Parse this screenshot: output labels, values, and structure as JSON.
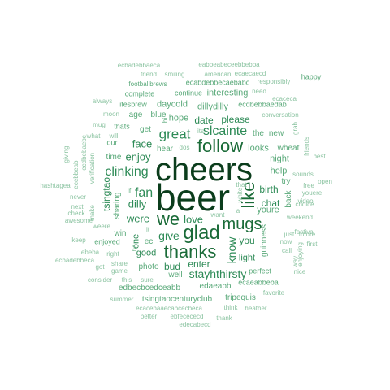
{
  "palette": [
    "#0b3d1c",
    "#1a6b38",
    "#2e8b57",
    "#59a979",
    "#8cc4a2"
  ],
  "words": [
    {
      "text": "beer",
      "tier": 0
    },
    {
      "text": "cheers",
      "tier": 0
    },
    {
      "text": "glad",
      "tier": 1
    },
    {
      "text": "thanks",
      "tier": 1
    },
    {
      "text": "follow",
      "tier": 1
    },
    {
      "text": "we",
      "tier": 1
    },
    {
      "text": "like",
      "tier": 1
    },
    {
      "text": "mugs",
      "tier": 1
    },
    {
      "text": "great",
      "tier": 2
    },
    {
      "text": "clinking",
      "tier": 2
    },
    {
      "text": "fan",
      "tier": 2
    },
    {
      "text": "slcainte",
      "tier": 2
    },
    {
      "text": "give",
      "tier": 2
    },
    {
      "text": "stayhthirsty",
      "tier": 2
    },
    {
      "text": "know",
      "tier": 2
    },
    {
      "text": "were",
      "tier": 2
    },
    {
      "text": "love",
      "tier": 2
    },
    {
      "text": "dilly",
      "tier": 2
    },
    {
      "text": "enjoy",
      "tier": 2
    },
    {
      "text": "face",
      "tier": 2
    },
    {
      "text": "please",
      "tier": 2
    },
    {
      "text": "date",
      "tier": 2
    },
    {
      "text": "tsingtao",
      "tier": 2
    },
    {
      "text": "chat",
      "tier": 2
    },
    {
      "text": "birth",
      "tier": 2
    },
    {
      "text": "bud",
      "tier": 2
    },
    {
      "text": "enter",
      "tier": 2
    },
    {
      "text": "you",
      "tier": 2
    },
    {
      "text": "light",
      "tier": 2
    },
    {
      "text": "good",
      "tier": 2
    },
    {
      "text": "one",
      "tier": 2
    },
    {
      "text": "dillydilly",
      "tier": 3
    },
    {
      "text": "interesting",
      "tier": 3
    },
    {
      "text": "daycold",
      "tier": 3
    },
    {
      "text": "hope",
      "tier": 3
    },
    {
      "text": "blue",
      "tier": 3
    },
    {
      "text": "age",
      "tier": 3
    },
    {
      "text": "get",
      "tier": 3
    },
    {
      "text": "thats",
      "tier": 3
    },
    {
      "text": "the",
      "tier": 3
    },
    {
      "text": "new",
      "tier": 3
    },
    {
      "text": "night",
      "tier": 3
    },
    {
      "text": "looks",
      "tier": 3
    },
    {
      "text": "wheat",
      "tier": 3
    },
    {
      "text": "help",
      "tier": 3
    },
    {
      "text": "youre",
      "tier": 3
    },
    {
      "text": "hear",
      "tier": 3
    },
    {
      "text": "time",
      "tier": 3
    },
    {
      "text": "sharing",
      "tier": 3
    },
    {
      "text": "our",
      "tier": 3
    },
    {
      "text": "ec",
      "tier": 3
    },
    {
      "text": "win",
      "tier": 3
    },
    {
      "text": "photo",
      "tier": 3
    },
    {
      "text": "well",
      "tier": 3
    },
    {
      "text": "edbecbcedceabb",
      "tier": 3
    },
    {
      "text": "edaeabb",
      "tier": 3
    },
    {
      "text": "tsingtaocenturyclub",
      "tier": 3
    },
    {
      "text": "tripequis",
      "tier": 3
    },
    {
      "text": "perfect",
      "tier": 3
    },
    {
      "text": "ecaeabbeba",
      "tier": 3
    },
    {
      "text": "guinness",
      "tier": 3
    },
    {
      "text": "back",
      "tier": 3
    },
    {
      "text": "try",
      "tier": 3
    },
    {
      "text": "happy",
      "tier": 3
    },
    {
      "text": "enjoyed",
      "tier": 3
    },
    {
      "text": "itesbrew",
      "tier": 3
    },
    {
      "text": "continue",
      "tier": 3
    },
    {
      "text": "complete",
      "tier": 3
    },
    {
      "text": "ecdbebbaedab",
      "tier": 3
    },
    {
      "text": "ecabdebbecaebabc",
      "tier": 3
    },
    {
      "text": "footballbrews",
      "tier": 3
    },
    {
      "text": "hi",
      "tier": 3
    },
    {
      "text": "if",
      "tier": 3
    },
    {
      "text": "ecbadebbaeca",
      "tier": 4
    },
    {
      "text": "eabbeabeceebbebba",
      "tier": 4
    },
    {
      "text": "friend",
      "tier": 4
    },
    {
      "text": "smiling",
      "tier": 4
    },
    {
      "text": "american",
      "tier": 4
    },
    {
      "text": "ecaecaecd",
      "tier": 4
    },
    {
      "text": "responsibly",
      "tier": 4
    },
    {
      "text": "need",
      "tier": 4
    },
    {
      "text": "ecaceca",
      "tier": 4
    },
    {
      "text": "always",
      "tier": 4
    },
    {
      "text": "moon",
      "tier": 4
    },
    {
      "text": "mug",
      "tier": 4
    },
    {
      "text": "conversation",
      "tier": 4
    },
    {
      "text": "grab",
      "tier": 4
    },
    {
      "text": "what",
      "tier": 4
    },
    {
      "text": "will",
      "tier": 4
    },
    {
      "text": "giving",
      "tier": 4
    },
    {
      "text": "ecebbeab",
      "tier": 4
    },
    {
      "text": "ecdbebaebc",
      "tier": 4
    },
    {
      "text": "verification",
      "tier": 4
    },
    {
      "text": "make",
      "tier": 4
    },
    {
      "text": "hashtagea",
      "tier": 4
    },
    {
      "text": "never",
      "tier": 4
    },
    {
      "text": "next",
      "tier": 4
    },
    {
      "text": "awesome",
      "tier": 4
    },
    {
      "text": "weere",
      "tier": 4
    },
    {
      "text": "keep",
      "tier": 4
    },
    {
      "text": "check",
      "tier": 4
    },
    {
      "text": "ebeba",
      "tier": 4
    },
    {
      "text": "ecbadebbeca",
      "tier": 4
    },
    {
      "text": "right",
      "tier": 4
    },
    {
      "text": "got",
      "tier": 4
    },
    {
      "text": "share",
      "tier": 4
    },
    {
      "text": "game",
      "tier": 4
    },
    {
      "text": "consider",
      "tier": 4
    },
    {
      "text": "this",
      "tier": 4
    },
    {
      "text": "sure",
      "tier": 4
    },
    {
      "text": "summer",
      "tier": 4
    },
    {
      "text": "ecacebaaecabcecbeca",
      "tier": 4
    },
    {
      "text": "better",
      "tier": 4
    },
    {
      "text": "ebfecececd",
      "tier": 4
    },
    {
      "text": "thank",
      "tier": 4
    },
    {
      "text": "edecabecd",
      "tier": 4
    },
    {
      "text": "think",
      "tier": 4
    },
    {
      "text": "heather",
      "tier": 4
    },
    {
      "text": "favorite",
      "tier": 4
    },
    {
      "text": "nice",
      "tier": 4
    },
    {
      "text": "call",
      "tier": 4
    },
    {
      "text": "first",
      "tier": 4
    },
    {
      "text": "now",
      "tier": 4
    },
    {
      "text": "just",
      "tier": 4
    },
    {
      "text": "enjoying",
      "tier": 4
    },
    {
      "text": "festival",
      "tier": 4
    },
    {
      "text": "weekend",
      "tier": 4
    },
    {
      "text": "choice",
      "tier": 4
    },
    {
      "text": "youere",
      "tier": 4
    },
    {
      "text": "video",
      "tier": 4
    },
    {
      "text": "open",
      "tier": 4
    },
    {
      "text": "free",
      "tier": 4
    },
    {
      "text": "sounds",
      "tier": 4
    },
    {
      "text": "best",
      "tier": 4
    },
    {
      "text": "friends",
      "tier": 4
    },
    {
      "text": "way",
      "tier": 4
    },
    {
      "text": "future",
      "tier": 4
    },
    {
      "text": "its",
      "tier": 4
    },
    {
      "text": "dos",
      "tier": 4
    },
    {
      "text": "that",
      "tier": 4
    },
    {
      "text": "white",
      "tier": 4
    },
    {
      "text": "want",
      "tier": 4
    },
    {
      "text": "it",
      "tier": 4
    },
    {
      "text": "a",
      "tier": 4
    },
    {
      "text": "he",
      "tier": 4
    }
  ]
}
